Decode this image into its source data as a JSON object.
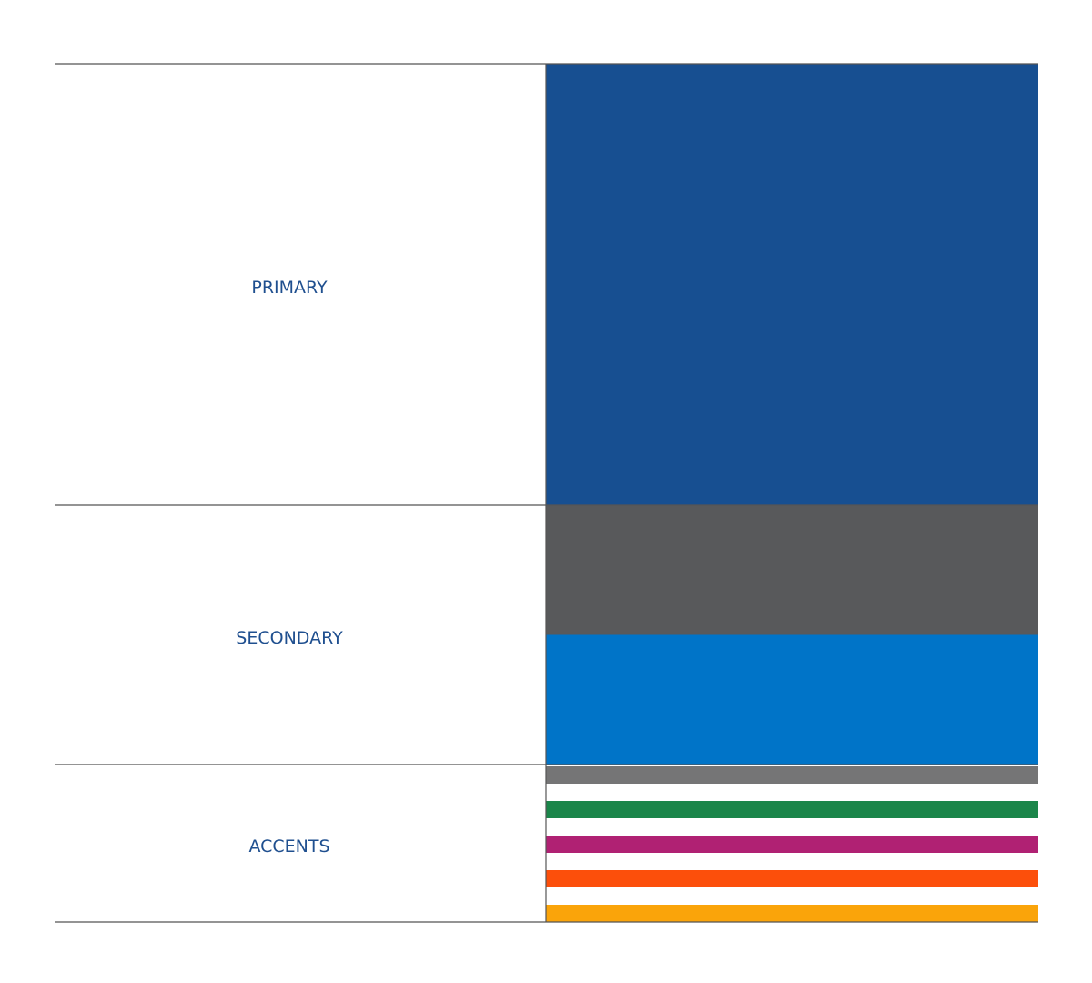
{
  "sections": [
    {
      "label": "PRIMARY",
      "colors": [
        "#174f91"
      ]
    },
    {
      "label": "SECONDARY",
      "colors": [
        "#58595b",
        "#0074c8"
      ]
    },
    {
      "label": "ACCENTS",
      "colors": [
        "#757576",
        "#1b864a",
        "#b02173",
        "#fc4f0b",
        "#faa40a"
      ]
    }
  ]
}
